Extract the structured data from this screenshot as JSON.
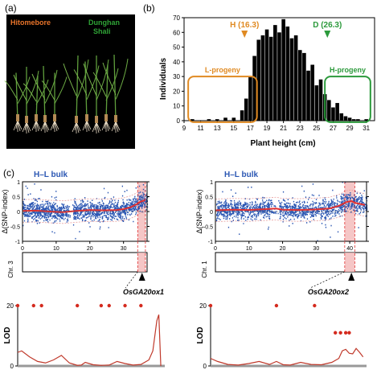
{
  "panel_labels": {
    "a": "(a)",
    "b": "(b)",
    "c": "(c)"
  },
  "photo": {
    "left_cultivar": "Hitomebore",
    "right_cultivar_line1": "Dunghan",
    "right_cultivar_line2": "Shali",
    "colors": {
      "left": "#e8742a",
      "right": "#2fa336",
      "background": "#000000"
    }
  },
  "colors": {
    "l_progeny": "#e08a22",
    "h_progeny": "#2c9a3c",
    "snp_points": "#2b57b3",
    "snp_line": "#e03030",
    "lod_line": "#c0392b",
    "lod_points": "#d42a1e",
    "highlight": "#f2b8b8"
  },
  "chart_data": [
    {
      "type": "bar",
      "id": "plant-height-histogram",
      "title": "",
      "xlabel": "Plant height  (cm)",
      "ylabel": "Individuals",
      "x_ticks": [
        9,
        11,
        13,
        15,
        17,
        19,
        21,
        23,
        25,
        27,
        29,
        31
      ],
      "yticks": [
        0,
        10,
        20,
        30,
        40,
        50,
        60,
        70
      ],
      "xlim": [
        9,
        32
      ],
      "ylim": [
        0,
        70
      ],
      "x": [
        10,
        11,
        12,
        13,
        14,
        15,
        16,
        16.5,
        17,
        17.5,
        18,
        18.5,
        19,
        19.5,
        20,
        20.5,
        21,
        21.5,
        22,
        22.5,
        23,
        23.5,
        24,
        24.5,
        25,
        25.5,
        26,
        26.5,
        27,
        27.5,
        28,
        28.5,
        29,
        29.5,
        30,
        31
      ],
      "values": [
        1,
        0,
        1,
        1,
        2,
        2,
        7,
        15,
        30,
        44,
        55,
        58,
        62,
        57,
        65,
        60,
        69,
        64,
        56,
        58,
        48,
        46,
        34,
        38,
        24,
        28,
        18,
        14,
        9,
        12,
        5,
        3,
        2,
        1,
        1,
        1
      ],
      "annotations": [
        {
          "label": "H (16.3)",
          "x": 16.3
        },
        {
          "label": "D (26.3)",
          "x": 26.3
        }
      ],
      "groups": [
        {
          "label": "L-progeny",
          "x_range": [
            9.5,
            17.8
          ]
        },
        {
          "label": "H-progeny",
          "x_range": [
            26,
            31.5
          ]
        }
      ]
    },
    {
      "type": "scatter",
      "id": "snp-index-chr3",
      "title": "H–L bulk",
      "ylabel": "Δ(SNP-index)",
      "x_ticks": [
        0,
        10,
        20,
        30
      ],
      "yticks": [
        -1,
        -0.5,
        0,
        0.5,
        1
      ],
      "xlim": [
        0,
        37
      ],
      "ylim": [
        -1,
        1
      ],
      "highlight_range": [
        34.2,
        36.5
      ],
      "trend": {
        "x": [
          0,
          4,
          8,
          12,
          16,
          20,
          24,
          28,
          30,
          32,
          34,
          35,
          36.4
        ],
        "y": [
          0.02,
          0.03,
          0.0,
          -0.02,
          0.02,
          0.05,
          0.04,
          0.05,
          0.08,
          0.14,
          0.25,
          0.33,
          0.38
        ]
      },
      "chromosome": "Chr. 3",
      "gene": "OsGA20ox1",
      "gene_position": 35.5
    },
    {
      "type": "scatter",
      "id": "snp-index-chr1",
      "title": "H–L bulk",
      "ylabel": "Δ(SNP-index)",
      "x_ticks": [
        0,
        10,
        20,
        30,
        40
      ],
      "yticks": [
        -1,
        -0.5,
        0,
        0.5,
        1
      ],
      "xlim": [
        0,
        45
      ],
      "ylim": [
        -1,
        1
      ],
      "highlight_range": [
        38.5,
        41.5
      ],
      "trend": {
        "x": [
          0,
          5,
          10,
          15,
          18,
          20,
          25,
          30,
          34,
          37,
          39,
          40.5,
          42,
          44.5
        ],
        "y": [
          0.04,
          0.06,
          0.05,
          0.08,
          0.1,
          0.06,
          0.05,
          0.07,
          0.1,
          0.2,
          0.32,
          0.35,
          0.28,
          0.22
        ]
      },
      "chromosome": "Chr. 1",
      "gene": "OsGA20ox2",
      "gene_position": 40.5
    },
    {
      "type": "line",
      "id": "lod-chr3",
      "ylabel": "LOD",
      "yticks": [
        0,
        20
      ],
      "ylim": [
        0,
        20
      ],
      "x": [
        0,
        1,
        3,
        5,
        7,
        9,
        11,
        13,
        15,
        16,
        17,
        19,
        21,
        23,
        25,
        27,
        29,
        31,
        33,
        34,
        35,
        35.5,
        36
      ],
      "y": [
        4.5,
        5,
        3,
        1.5,
        1,
        2,
        3.5,
        1,
        0.2,
        0.3,
        1.2,
        0.4,
        0.2,
        0.3,
        1.5,
        0.8,
        0.3,
        0.5,
        2,
        5,
        15,
        17,
        0
      ],
      "point_x": [
        0,
        4,
        6,
        15,
        21,
        23,
        27,
        31
      ],
      "point_y": [
        20,
        20,
        20,
        20,
        20,
        20,
        20,
        20
      ]
    },
    {
      "type": "line",
      "id": "lod-chr1",
      "ylabel": "LOD",
      "yticks": [
        0,
        20
      ],
      "ylim": [
        0,
        20
      ],
      "x": [
        0,
        2,
        5,
        8,
        11,
        14,
        17,
        19,
        21,
        23,
        26,
        29,
        32,
        35,
        37,
        38,
        39,
        40,
        41,
        42,
        43,
        44
      ],
      "y": [
        2.5,
        1.5,
        0.5,
        0.3,
        0.8,
        1.5,
        0.5,
        1.5,
        0.4,
        0.3,
        1.2,
        0.5,
        0.4,
        1.2,
        2.5,
        5,
        5.5,
        4.2,
        4,
        5.8,
        4.5,
        3
      ],
      "point_x": [
        0,
        19,
        30,
        36,
        37.5,
        39,
        40
      ],
      "point_y": [
        20,
        20,
        20,
        11,
        11,
        11,
        11
      ]
    }
  ]
}
